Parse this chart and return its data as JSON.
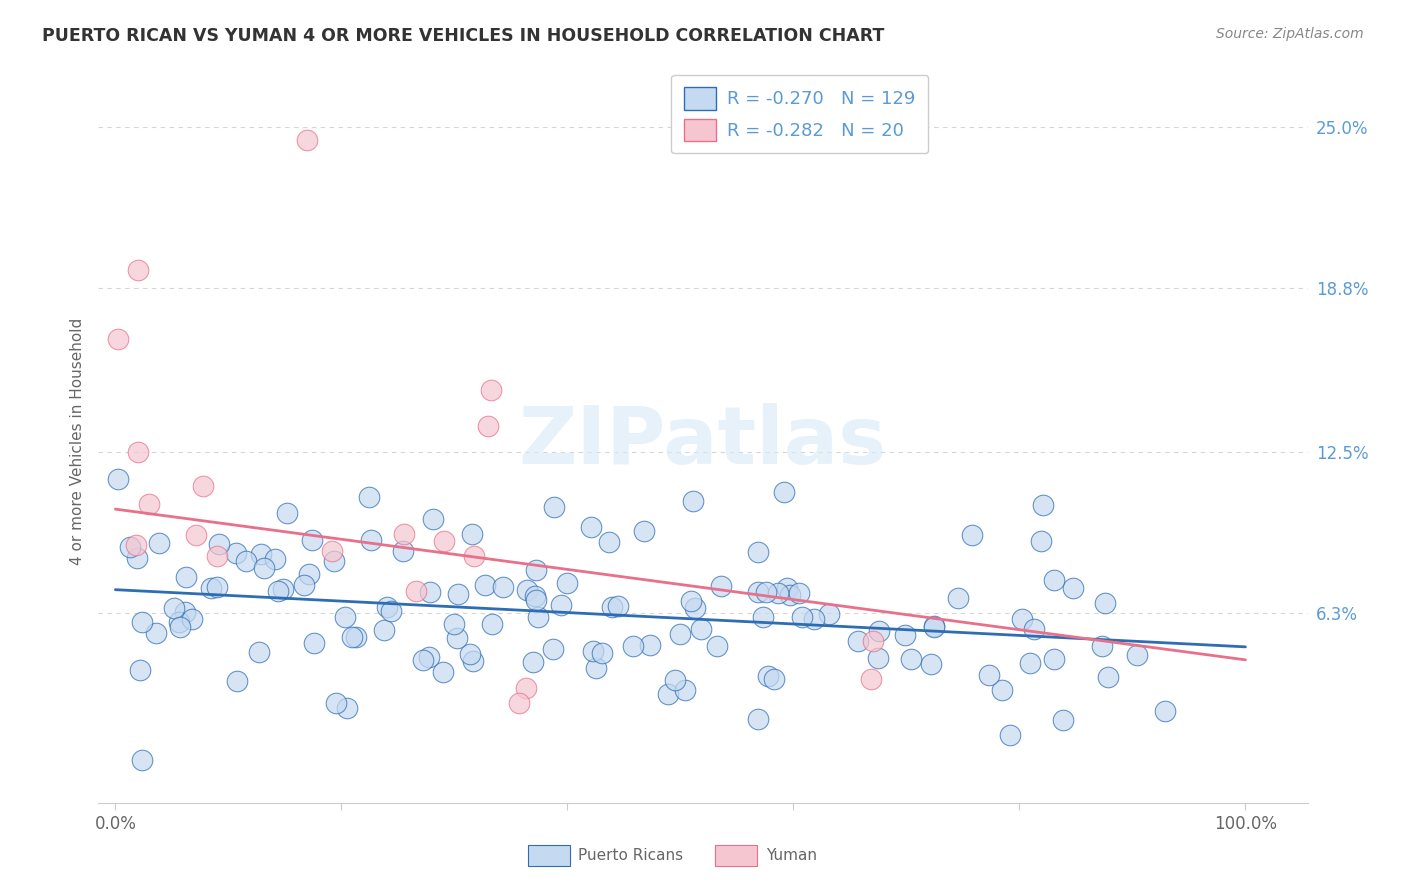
{
  "title": "PUERTO RICAN VS YUMAN 4 OR MORE VEHICLES IN HOUSEHOLD CORRELATION CHART",
  "source": "Source: ZipAtlas.com",
  "ylabel_label": "4 or more Vehicles in Household",
  "legend_entries": [
    {
      "label": "Puerto Ricans",
      "R": "-0.270",
      "N": "129",
      "color": "#c5d9f0",
      "line_color": "#2e6db4"
    },
    {
      "label": "Yuman",
      "R": "-0.282",
      "N": "20",
      "color": "#f5c6d0",
      "line_color": "#e8708a"
    }
  ],
  "watermark": "ZIPatlas",
  "background_color": "#ffffff",
  "grid_color": "#cccccc",
  "title_color": "#333333",
  "axis_label_color": "#666666",
  "right_tick_color": "#5b9bd5",
  "bottom_tick_color": "#666666",
  "seed": 12345,
  "blue_n": 129,
  "pink_n": 20,
  "blue_intercept": 0.072,
  "blue_slope": -0.022,
  "pink_intercept": 0.103,
  "pink_slope": -0.058,
  "y_tick_vals": [
    0.063,
    0.125,
    0.188,
    0.25
  ],
  "y_tick_labels": [
    "6.3%",
    "12.5%",
    "18.8%",
    "25.0%"
  ],
  "x_tick_labels": [
    "0.0%",
    "100.0%"
  ],
  "y_min": -0.01,
  "y_max": 0.268,
  "x_min": -0.015,
  "x_max": 1.055
}
